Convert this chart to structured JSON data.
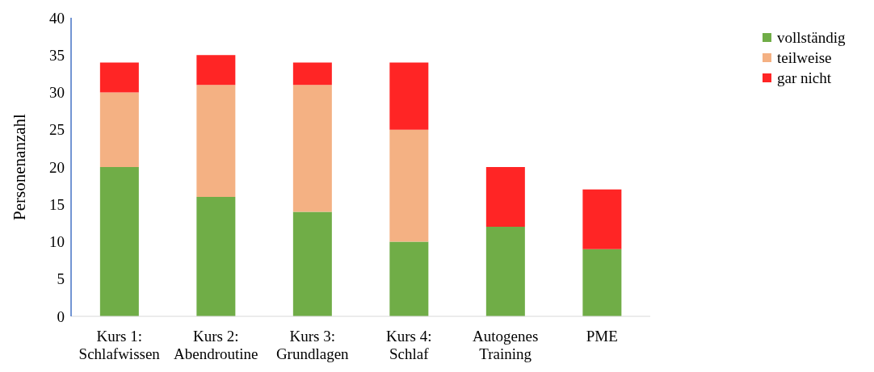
{
  "chart_data": {
    "type": "bar",
    "stacked": true,
    "ylabel": "Personenanzahl",
    "categories": [
      "Kurs 1:\nSchlafwissen",
      "Kurs 2:\nAbendroutine",
      "Kurs 3:\nGrundlagen",
      "Kurs 4:\nSchlaf",
      "Autogenes\nTraining",
      "PME"
    ],
    "series": [
      {
        "name": "vollständig",
        "color": "#70ad47",
        "values": [
          20,
          16,
          14,
          10,
          12,
          9
        ]
      },
      {
        "name": "teilweise",
        "color": "#f4b183",
        "values": [
          10,
          15,
          17,
          15,
          0,
          0
        ]
      },
      {
        "name": "gar nicht",
        "color": "#ff2525",
        "values": [
          4,
          4,
          3,
          9,
          8,
          8
        ]
      }
    ],
    "ylim": [
      0,
      40
    ],
    "yticks": [
      0,
      5,
      10,
      15,
      20,
      25,
      30,
      35,
      40
    ],
    "grid": false,
    "legend": "top right"
  }
}
